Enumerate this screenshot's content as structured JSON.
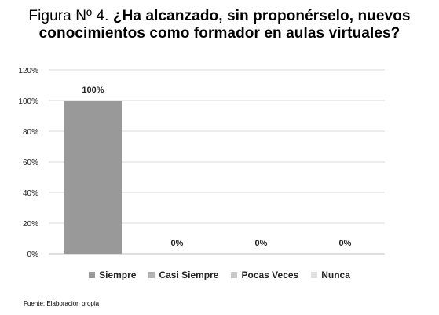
{
  "figure": {
    "title_prefix": "Figura Nº 4.",
    "title_question_line1": "¿Ha alcanzado, sin proponérselo, nuevos",
    "title_line2": "conocimientos como formador en aulas virtuales?",
    "source": "Fuente: Elaboración propia"
  },
  "chart_data": {
    "type": "bar",
    "categories": [
      "Siempre",
      "Casi Siempre",
      "Pocas Veces",
      "Nunca"
    ],
    "values": [
      100,
      0,
      0,
      0
    ],
    "data_labels": [
      "100%",
      "0%",
      "0%",
      "0%"
    ],
    "ylim": [
      0,
      120
    ],
    "yticks": [
      0,
      20,
      40,
      60,
      80,
      100,
      120
    ],
    "ytick_labels": [
      "0%",
      "20%",
      "40%",
      "60%",
      "80%",
      "100%",
      "120%"
    ],
    "grid": true,
    "legend_placement": "bottom",
    "colors": [
      "#999999",
      "#b3b3b3",
      "#c8c8c8",
      "#e0e0e0"
    ]
  }
}
